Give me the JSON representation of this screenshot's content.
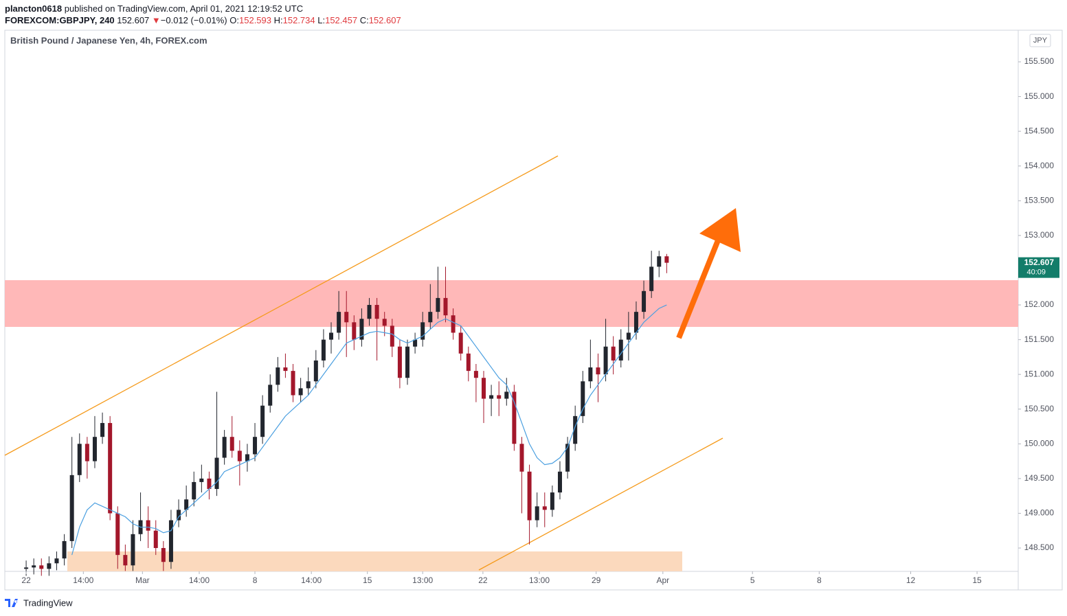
{
  "header": {
    "author": "plancton0618",
    "published": "published on TradingView.com, April 01, 2021 12:19:52 UTC",
    "symbol": "FOREXCOM:GBPJPY, 240",
    "last": "152.607",
    "arrow": "▼",
    "change": "−0.012 (−0.01%)",
    "ohlc": [
      {
        "label": "O:",
        "value": "152.593"
      },
      {
        "label": "H:",
        "value": "152.734"
      },
      {
        "label": "L:",
        "value": "152.457"
      },
      {
        "label": "C:",
        "value": "152.607"
      }
    ]
  },
  "footer": {
    "brand": "TradingView"
  },
  "chart_data": {
    "type": "candlestick",
    "title": "British Pound / Japanese Yen, 4h, FOREX.com",
    "currency": "JPY",
    "countdown": "40:09",
    "up_color": "#22262e",
    "down_color": "#a3172b",
    "ma_color": "#4a9fe0",
    "price_tag_color": "#137d6a",
    "grid": false,
    "xlim": [
      -5.6,
      260.2
    ],
    "ylim": [
      148.164,
      155.955
    ],
    "xticks": [
      {
        "value": 0,
        "label": "22"
      },
      {
        "value": 15,
        "label": "14:00"
      },
      {
        "value": 30.5,
        "label": "Mar"
      },
      {
        "value": 45.4,
        "label": "14:00"
      },
      {
        "value": 60,
        "label": "8"
      },
      {
        "value": 74.8,
        "label": "14:00"
      },
      {
        "value": 89.5,
        "label": "15"
      },
      {
        "value": 104,
        "label": "13:00"
      },
      {
        "value": 119.8,
        "label": "22"
      },
      {
        "value": 134.6,
        "label": "13:00"
      },
      {
        "value": 149.5,
        "label": "29"
      },
      {
        "value": 167,
        "label": "Apr"
      },
      {
        "value": 190.5,
        "label": "5"
      },
      {
        "value": 208,
        "label": "8"
      },
      {
        "value": 232,
        "label": "12"
      },
      {
        "value": 249.4,
        "label": "15"
      }
    ],
    "yticks": [
      {
        "value": 148.5,
        "label": "148.500"
      },
      {
        "value": 149,
        "label": "149.000"
      },
      {
        "value": 149.5,
        "label": "149.500"
      },
      {
        "value": 150,
        "label": "150.000"
      },
      {
        "value": 150.5,
        "label": "150.500"
      },
      {
        "value": 151,
        "label": "151.000"
      },
      {
        "value": 151.5,
        "label": "151.500"
      },
      {
        "value": 152,
        "label": "152.000"
      },
      {
        "value": 152.5,
        "label": "152.500"
      },
      {
        "value": 153,
        "label": "153.000"
      },
      {
        "value": 153.5,
        "label": "153.500"
      },
      {
        "value": 154,
        "label": "154.000"
      },
      {
        "value": 154.5,
        "label": "154.500"
      },
      {
        "value": 155,
        "label": "155.000"
      },
      {
        "value": 155.5,
        "label": "155.500"
      }
    ],
    "x": [
      0,
      2,
      4,
      6,
      8,
      10,
      12,
      14,
      16,
      18,
      20,
      22,
      24,
      26,
      28,
      30,
      32,
      34,
      36,
      38,
      40,
      42,
      44,
      46,
      48,
      50,
      52,
      54,
      56,
      58,
      60,
      62,
      64,
      66,
      68,
      70,
      72,
      74,
      76,
      78,
      80,
      82,
      84,
      86,
      88,
      90,
      92,
      94,
      96,
      98,
      100,
      102,
      104,
      106,
      108,
      110,
      112,
      114,
      116,
      118,
      120,
      122,
      124,
      126,
      128,
      130,
      132,
      134,
      136,
      138,
      140,
      142,
      144,
      146,
      148,
      150,
      152,
      154,
      156,
      158,
      160,
      162,
      164,
      166,
      168
    ],
    "open": [
      148.2,
      148.22,
      148.25,
      148.2,
      148.28,
      148.35,
      148.6,
      149.55,
      150.0,
      149.75,
      150.1,
      150.3,
      149.0,
      148.4,
      148.25,
      148.7,
      148.9,
      148.75,
      148.5,
      148.3,
      148.9,
      149.05,
      149.2,
      149.45,
      149.5,
      149.35,
      149.8,
      150.1,
      149.9,
      149.75,
      149.85,
      150.1,
      150.55,
      150.85,
      151.1,
      151.05,
      150.7,
      150.8,
      150.9,
      151.2,
      151.5,
      151.6,
      151.9,
      151.75,
      151.5,
      151.8,
      152.0,
      151.8,
      151.7,
      151.4,
      150.95,
      151.4,
      151.5,
      151.75,
      151.9,
      152.1,
      151.85,
      151.6,
      151.3,
      151.05,
      150.95,
      150.65,
      150.7,
      150.65,
      150.75,
      150.0,
      149.6,
      148.9,
      149.1,
      149.05,
      149.3,
      149.6,
      150.0,
      150.4,
      150.9,
      151.1,
      151.0,
      151.4,
      151.2,
      151.5,
      151.6,
      151.9,
      152.2,
      152.55,
      152.7
    ],
    "high": [
      148.32,
      148.35,
      148.35,
      148.38,
      148.45,
      148.7,
      150.1,
      150.15,
      150.1,
      150.4,
      150.45,
      150.4,
      149.1,
      148.55,
      148.9,
      149.3,
      149.1,
      148.9,
      148.6,
      149.05,
      149.2,
      149.4,
      149.6,
      149.7,
      149.6,
      150.75,
      150.2,
      150.4,
      150.05,
      150.0,
      150.3,
      150.7,
      151.0,
      151.25,
      151.3,
      151.15,
      150.95,
      151.1,
      151.35,
      151.65,
      151.75,
      152.2,
      152.2,
      151.85,
      151.95,
      152.1,
      152.1,
      151.9,
      151.8,
      151.5,
      151.5,
      151.6,
      151.9,
      152.3,
      152.55,
      152.55,
      151.95,
      151.7,
      151.4,
      151.15,
      151.05,
      150.85,
      150.9,
      150.95,
      150.85,
      150.1,
      149.7,
      149.3,
      149.3,
      149.4,
      149.75,
      150.1,
      150.55,
      151.05,
      151.5,
      151.3,
      151.8,
      151.55,
      151.65,
      151.9,
      152.05,
      152.35,
      152.78,
      152.78,
      152.734
    ],
    "low": [
      148.1,
      148.12,
      148.1,
      148.1,
      148.18,
      148.25,
      148.5,
      149.45,
      149.5,
      149.65,
      150.0,
      148.9,
      148.2,
      148.17,
      148.17,
      148.6,
      148.5,
      148.4,
      148.17,
      148.2,
      148.8,
      148.95,
      149.1,
      149.3,
      149.2,
      149.25,
      149.7,
      149.8,
      149.4,
      149.6,
      149.75,
      150.0,
      150.45,
      150.75,
      150.95,
      150.6,
      150.6,
      150.7,
      150.8,
      151.1,
      151.3,
      151.5,
      151.25,
      151.35,
      151.4,
      151.7,
      151.2,
      151.55,
      151.25,
      150.8,
      150.85,
      151.3,
      151.4,
      151.65,
      151.8,
      151.75,
      151.5,
      151.2,
      150.9,
      150.6,
      150.3,
      150.4,
      150.4,
      150.55,
      149.9,
      149.0,
      148.55,
      148.8,
      148.8,
      148.95,
      149.2,
      149.5,
      149.9,
      150.3,
      150.8,
      150.6,
      150.9,
      151.0,
      151.1,
      151.2,
      151.5,
      151.8,
      152.1,
      152.4,
      152.457
    ],
    "close": [
      148.22,
      148.25,
      148.2,
      148.28,
      148.35,
      148.6,
      149.55,
      150.0,
      149.75,
      150.1,
      150.3,
      149.0,
      148.4,
      148.25,
      148.7,
      148.9,
      148.75,
      148.5,
      148.3,
      148.9,
      149.05,
      149.2,
      149.45,
      149.5,
      149.35,
      149.8,
      150.1,
      149.9,
      149.75,
      149.85,
      150.1,
      150.55,
      150.85,
      151.1,
      151.05,
      150.7,
      150.8,
      150.9,
      151.2,
      151.5,
      151.6,
      151.9,
      151.75,
      151.5,
      151.8,
      152.0,
      151.8,
      151.7,
      151.4,
      150.95,
      151.4,
      151.5,
      151.75,
      151.9,
      152.1,
      151.85,
      151.6,
      151.3,
      151.05,
      150.95,
      150.65,
      150.7,
      150.65,
      150.75,
      150.0,
      149.6,
      148.9,
      149.1,
      149.05,
      149.3,
      149.6,
      150.0,
      150.4,
      150.9,
      151.1,
      151.0,
      151.4,
      151.2,
      151.5,
      151.6,
      151.9,
      152.2,
      152.55,
      152.7,
      152.607
    ],
    "ma_values": [
      null,
      null,
      null,
      null,
      null,
      null,
      148.4,
      148.8,
      149.05,
      149.15,
      149.1,
      149.05,
      149.0,
      148.95,
      148.85,
      148.8,
      148.8,
      148.78,
      148.72,
      148.75,
      148.95,
      149.05,
      149.15,
      149.25,
      149.35,
      149.45,
      149.6,
      149.65,
      149.7,
      149.75,
      149.8,
      149.95,
      150.1,
      150.25,
      150.4,
      150.5,
      150.6,
      150.7,
      150.85,
      151.0,
      151.15,
      151.3,
      151.45,
      151.5,
      151.55,
      151.6,
      151.62,
      151.6,
      151.58,
      151.5,
      151.45,
      151.5,
      151.55,
      151.65,
      151.75,
      151.8,
      151.75,
      151.7,
      151.55,
      151.4,
      151.25,
      151.1,
      150.95,
      150.85,
      150.6,
      150.3,
      150.0,
      149.8,
      149.7,
      149.72,
      149.8,
      149.95,
      150.25,
      150.5,
      150.7,
      150.85,
      151.0,
      151.15,
      151.3,
      151.45,
      151.6,
      151.75,
      151.85,
      151.95,
      152.0
    ]
  }
}
